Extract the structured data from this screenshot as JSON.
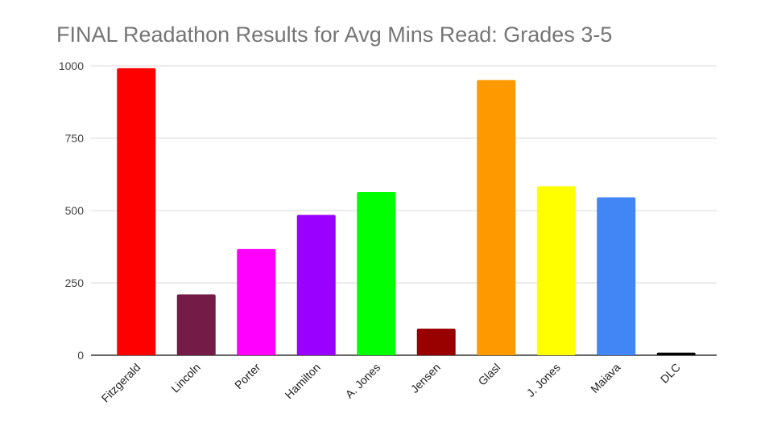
{
  "chart_data": {
    "type": "bar",
    "title": "FINAL Readathon Results for Avg Mins Read: Grades 3-5",
    "xlabel": "",
    "ylabel": "",
    "ylim": [
      0,
      1000
    ],
    "yticks": [
      0,
      250,
      500,
      750,
      1000
    ],
    "grid": true,
    "legend": "none",
    "categories": [
      "Fitzgerald",
      "Lincoln",
      "Porter",
      "Hamilton",
      "A. Jones",
      "Jensen",
      "Glasl",
      "J. Jones",
      "Maiava",
      "DLC"
    ],
    "values": [
      992,
      210,
      367,
      485,
      564,
      92,
      951,
      584,
      546,
      9
    ],
    "colors": [
      "#ff0000",
      "#741b47",
      "#ff00ff",
      "#9900ff",
      "#00ff00",
      "#990000",
      "#ff9900",
      "#ffff00",
      "#4285f4",
      "#000000"
    ]
  }
}
